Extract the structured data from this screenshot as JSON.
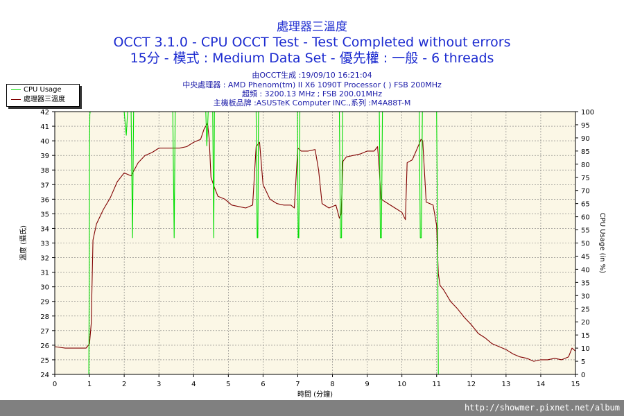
{
  "header": {
    "title": "處理器三溫度",
    "line2": "OCCT 3.1.0 - CPU OCCT Test - Test Completed without errors",
    "line3": "15分 - 模式 : Medium Data Set - 優先權 : 一般 - 6 threads",
    "info1": "由OCCT生成 :19/09/10 16:21:04",
    "info2": "中央處理器 : AMD Phenom(tm) II X6 1090T Processor (    ) FSB 200MHz",
    "info3": "超頻 : 3200.13 MHz ; FSB 200.01MHz",
    "info4": "主機板品牌 :ASUSTeK Computer INC.,系列 :M4A88T-M"
  },
  "legend": {
    "cpu_usage": "CPU Usage",
    "temp": "處理器三溫度"
  },
  "footer": {
    "url": "http://showmer.pixnet.net/album"
  },
  "colors": {
    "temp": "#800000",
    "usage": "#00dd00",
    "plot_bg": "#fbf7e6",
    "text": "#1c2bd0"
  },
  "chart_data": {
    "type": "line",
    "xlabel": "時間 (分鐘)",
    "ylabel_left": "溫度 (攝氏)",
    "ylabel_right": "CPU Usage (in %)",
    "xlim": [
      0,
      15
    ],
    "ylim_left": [
      24,
      42
    ],
    "ylim_right": [
      0,
      100
    ],
    "x_ticks": [
      0,
      1,
      2,
      3,
      4,
      5,
      6,
      7,
      8,
      9,
      10,
      11,
      12,
      13,
      14,
      15
    ],
    "y_ticks_left": [
      24,
      25,
      26,
      27,
      28,
      29,
      30,
      31,
      32,
      33,
      34,
      35,
      36,
      37,
      38,
      39,
      40,
      41,
      42
    ],
    "y_ticks_right": [
      0,
      5,
      10,
      15,
      20,
      25,
      30,
      35,
      40,
      45,
      50,
      55,
      60,
      65,
      70,
      75,
      80,
      85,
      90,
      95,
      100
    ],
    "grid": true,
    "legend_position": "top-left",
    "series": [
      {
        "name": "處理器三溫度",
        "axis": "left",
        "x": [
          0,
          0.3,
          0.6,
          0.9,
          1.0,
          1.05,
          1.1,
          1.2,
          1.4,
          1.6,
          1.8,
          2.0,
          2.2,
          2.4,
          2.6,
          2.8,
          3.0,
          3.2,
          3.4,
          3.6,
          3.8,
          4.0,
          4.2,
          4.3,
          4.4,
          4.45,
          4.5,
          4.6,
          4.7,
          4.9,
          5.1,
          5.3,
          5.5,
          5.7,
          5.8,
          5.9,
          6.0,
          6.2,
          6.4,
          6.6,
          6.8,
          6.9,
          7.0,
          7.1,
          7.3,
          7.5,
          7.6,
          7.7,
          7.9,
          8.1,
          8.2,
          8.25,
          8.3,
          8.4,
          8.6,
          8.8,
          9.0,
          9.2,
          9.3,
          9.35,
          9.4,
          9.6,
          9.8,
          10.0,
          10.1,
          10.15,
          10.3,
          10.5,
          10.55,
          10.6,
          10.7,
          10.9,
          11.0,
          11.05,
          11.1,
          11.2,
          11.4,
          11.6,
          11.8,
          12.0,
          12.2,
          12.4,
          12.6,
          12.8,
          13.0,
          13.2,
          13.4,
          13.6,
          13.8,
          14.0,
          14.2,
          14.4,
          14.6,
          14.8,
          14.9,
          15.0
        ],
        "values": [
          25.9,
          25.8,
          25.8,
          25.8,
          26.1,
          27.5,
          33.2,
          34.3,
          35.3,
          36.1,
          37.2,
          37.8,
          37.6,
          38.5,
          39.0,
          39.2,
          39.5,
          39.5,
          39.5,
          39.5,
          39.6,
          39.9,
          40.1,
          40.8,
          41.2,
          40.1,
          37.5,
          36.8,
          36.2,
          36.0,
          35.6,
          35.5,
          35.4,
          35.6,
          39.6,
          39.9,
          37.0,
          36.0,
          35.7,
          35.6,
          35.6,
          35.4,
          39.5,
          39.3,
          39.3,
          39.4,
          38.0,
          35.7,
          35.4,
          35.6,
          34.7,
          35.0,
          38.6,
          38.9,
          39.0,
          39.1,
          39.3,
          39.3,
          39.6,
          38.0,
          36.0,
          35.7,
          35.4,
          35.1,
          34.6,
          38.5,
          38.7,
          39.8,
          40.1,
          40.0,
          35.8,
          35.6,
          34.2,
          30.9,
          30.1,
          29.8,
          29.0,
          28.5,
          27.9,
          27.4,
          26.8,
          26.5,
          26.1,
          25.9,
          25.7,
          25.4,
          25.2,
          25.1,
          24.9,
          25.0,
          25.0,
          25.1,
          25.0,
          25.2,
          25.8,
          25.6
        ]
      },
      {
        "name": "CPU Usage",
        "axis": "right",
        "x": [
          0,
          0.98,
          0.99,
          1.0,
          1.01,
          1.02,
          1.04,
          1.08,
          2.0,
          2.06,
          2.1,
          2.2,
          2.24,
          2.27,
          3.4,
          3.44,
          3.47,
          3.5,
          3.54,
          4.35,
          4.38,
          4.42,
          4.45,
          4.55,
          4.58,
          4.6,
          4.63,
          4.65,
          5.8,
          5.83,
          5.85,
          5.87,
          5.9,
          6.99,
          7.01,
          7.03,
          7.06,
          8.2,
          8.23,
          8.26,
          8.29,
          9.35,
          9.38,
          9.41,
          9.44,
          10.5,
          10.53,
          10.56,
          10.59,
          11.0,
          11.03,
          11.05,
          11.08,
          15.0
        ],
        "values": [
          0,
          0,
          30,
          85,
          99,
          100,
          100,
          100,
          100,
          91,
          100,
          100,
          52,
          100,
          100,
          52,
          100,
          100,
          100,
          100,
          87,
          100,
          100,
          100,
          52,
          100,
          100,
          100,
          100,
          52,
          52,
          100,
          100,
          100,
          52,
          52,
          100,
          100,
          52,
          52,
          100,
          100,
          52,
          52,
          100,
          100,
          52,
          52,
          100,
          100,
          52,
          0,
          0,
          0
        ]
      }
    ]
  }
}
